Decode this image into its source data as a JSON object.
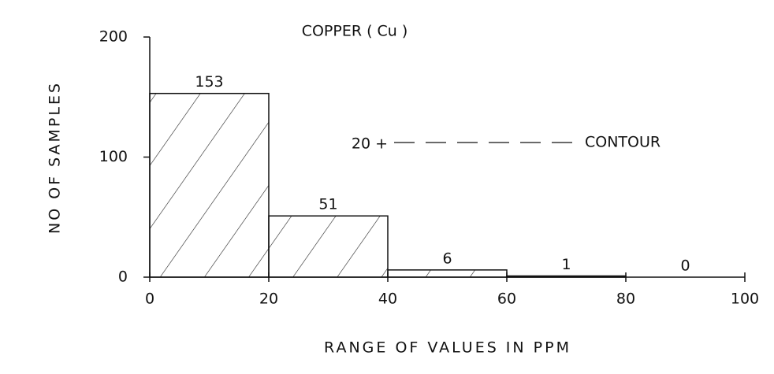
{
  "chart_data": {
    "type": "histogram",
    "title": "COPPER ( Cu )",
    "xlabel": "RANGE OF VALUES IN PPM",
    "ylabel": "NO OF SAMPLES",
    "bins": [
      0,
      20,
      40,
      60,
      80,
      100
    ],
    "values": [
      153,
      51,
      6,
      1,
      0
    ],
    "color": "#111111",
    "hatch": true,
    "xlim": [
      0,
      100
    ],
    "xticks": [
      0,
      20,
      40,
      60,
      80,
      100
    ],
    "ylim": [
      0,
      200
    ],
    "yticks": [
      0,
      100,
      200
    ],
    "grid": false,
    "annotations": [
      "20 +",
      "CONTOUR"
    ]
  }
}
